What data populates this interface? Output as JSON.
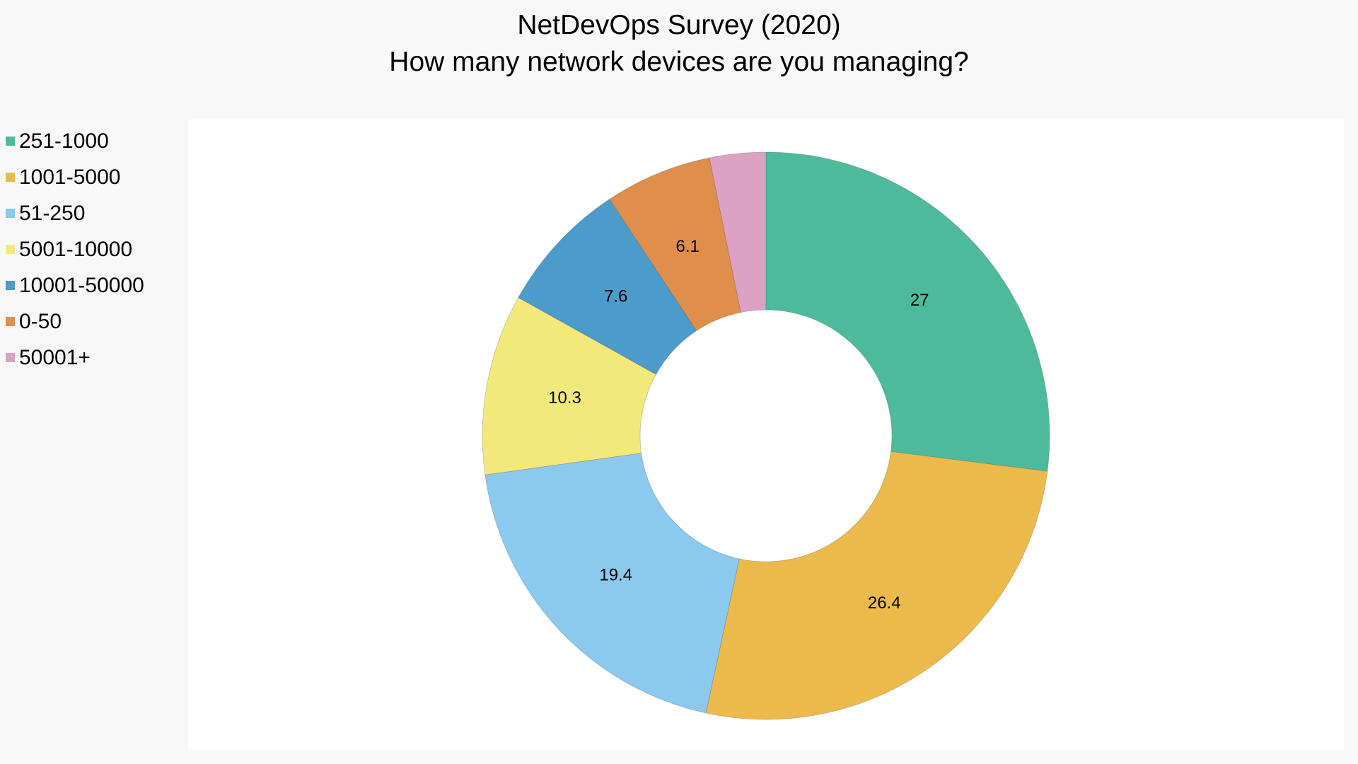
{
  "chart_data": {
    "type": "pie",
    "donut": true,
    "title": "NetDevOps Survey (2020)",
    "subtitle": "How many network devices are you managing?",
    "legend_position": "left",
    "categories": [
      "251-1000",
      "1001-5000",
      "51-250",
      "5001-10000",
      "10001-50000",
      "0-50",
      "50001+"
    ],
    "values": [
      27,
      26.4,
      19.4,
      10.3,
      7.6,
      6.1,
      3.2
    ],
    "data_labels": [
      "27",
      "26.4",
      "19.4",
      "10.3",
      "7.6",
      "6.1",
      ""
    ],
    "colors": [
      "#4dbb9b",
      "#ecba4c",
      "#8bc9ee",
      "#f3e97a",
      "#4b9ccb",
      "#e08e4b",
      "#dca1c3"
    ]
  }
}
